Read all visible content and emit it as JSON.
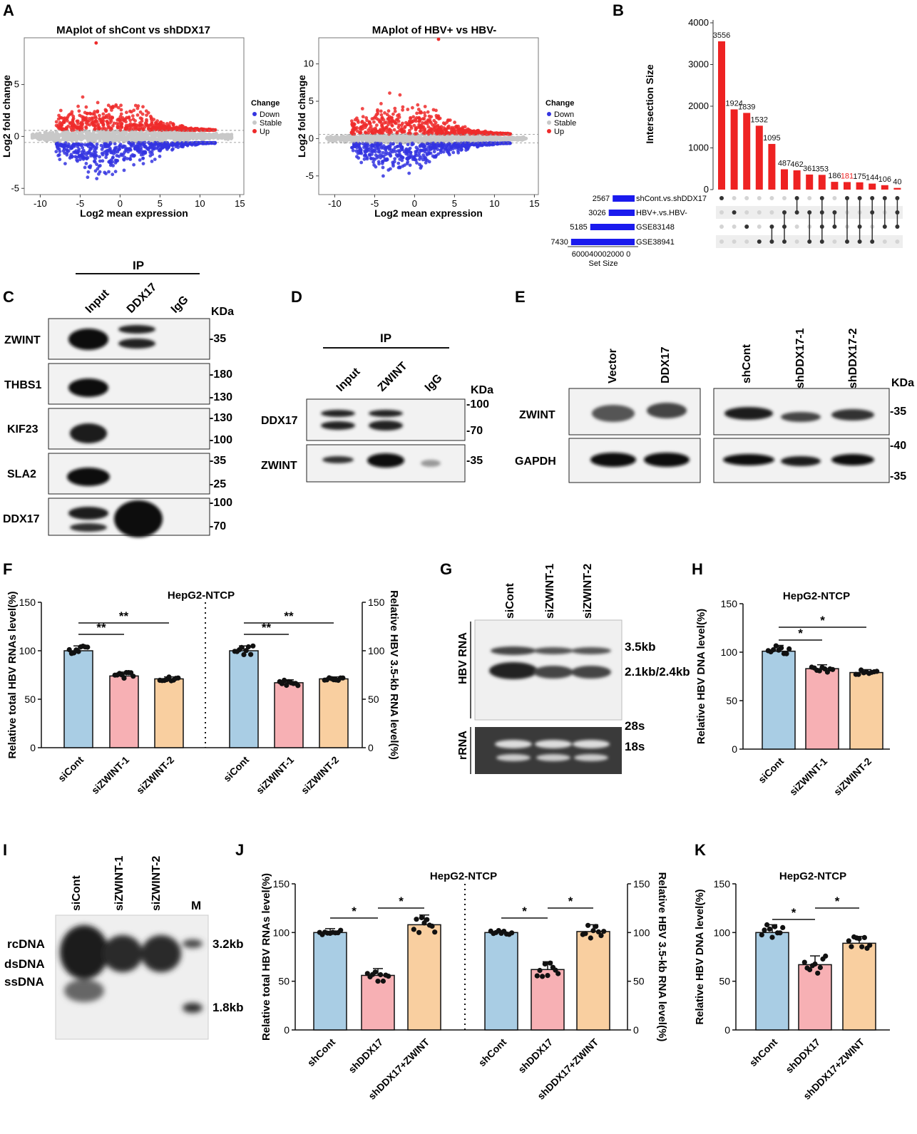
{
  "panel_letters": [
    "A",
    "B",
    "C",
    "D",
    "E",
    "F",
    "G",
    "H",
    "I",
    "J",
    "K"
  ],
  "colors": {
    "up": "#ee2a2a",
    "down": "#3434e0",
    "stable": "#c8c8c8",
    "bar_red": "#ee2222",
    "bar_blue": "#1a1aee",
    "ctrl": "#a9cde4",
    "kd": "#f7b0b4",
    "rescue": "#f9cfa0"
  },
  "chart_data": [
    {
      "id": "A1",
      "type": "scatter",
      "title": "MAplot of shCont vs shDDX17",
      "xlabel": "Log2 mean expression",
      "ylabel": "Log2 fold change",
      "xticks": [
        "-10",
        "-5",
        "0",
        "5",
        "10",
        "15"
      ],
      "yticks": [
        "-5",
        "0",
        "5"
      ],
      "xlim": [
        -12,
        15.5
      ],
      "ylim": [
        -5.6,
        9.5
      ],
      "legend": {
        "title": "Change",
        "items": [
          "Down",
          "Stable",
          "Up"
        ]
      },
      "thresholds": [
        -0.58,
        0.58
      ],
      "cloud": {
        "x_range": [
          -11,
          14
        ],
        "up_max": 5,
        "down_min": -5,
        "outlier_x": -3,
        "outlier_y": 9
      }
    },
    {
      "id": "A2",
      "type": "scatter",
      "title": "MAplot of HBV+ vs HBV-",
      "xlabel": "Log2 mean expression",
      "ylabel": "Log2 fold change",
      "xticks": [
        "-10",
        "-5",
        "0",
        "5",
        "10",
        "15"
      ],
      "yticks": [
        "-5",
        "0",
        "5",
        "10"
      ],
      "xlim": [
        -12,
        15.5
      ],
      "ylim": [
        -7.5,
        13.5
      ],
      "legend": {
        "title": "Change",
        "items": [
          "Down",
          "Stable",
          "Up"
        ]
      },
      "thresholds": [
        -0.58,
        0.58
      ],
      "cloud": {
        "x_range": [
          -11,
          14
        ],
        "up_max": 7,
        "down_min": -6.5,
        "outlier_x": 3,
        "outlier_y": 13.3
      }
    },
    {
      "id": "B",
      "type": "bar",
      "subtype": "upset",
      "ylabel": "Intersection Size",
      "yticks": [
        "0",
        "1000",
        "2000",
        "3000",
        "4000"
      ],
      "ylim": [
        0,
        4000
      ],
      "values": [
        3556,
        1924,
        1839,
        1532,
        1095,
        487,
        462,
        361,
        353,
        186,
        181,
        175,
        144,
        106,
        40
      ],
      "highlight_index": 10,
      "sets": [
        {
          "name": "shCont.vs.shDDX17",
          "size": 2567
        },
        {
          "name": "HBV+.vs.HBV-",
          "size": 3026
        },
        {
          "name": "GSE83148",
          "size": 5185
        },
        {
          "name": "GSE38941",
          "size": 7430
        }
      ],
      "set_size_label": "Set Size",
      "set_size_ticks": "600040002000  0",
      "matrix": [
        [
          0
        ],
        [
          1
        ],
        [
          2
        ],
        [
          3
        ],
        [
          2,
          3
        ],
        [
          1,
          2,
          3
        ],
        [
          0,
          1
        ],
        [
          1,
          3
        ],
        [
          0,
          1,
          2,
          3
        ],
        [
          1,
          2
        ],
        [
          0,
          3
        ],
        [
          0,
          2,
          3
        ],
        [
          0,
          1,
          3
        ],
        [
          0,
          2
        ],
        [
          0,
          1,
          2
        ]
      ]
    },
    {
      "id": "F",
      "type": "bar",
      "title": "HepG2-NTCP",
      "ylabel": "Relative total HBV RNAs level(%)",
      "y2label": "Relative HBV 3.5-kb RNA level(%)",
      "yticks": [
        "0",
        "50",
        "100",
        "150"
      ],
      "ylim": [
        0,
        150
      ],
      "categories": [
        "siCont",
        "siZWINT-1",
        "siZWINT-2",
        "siCont",
        "siZWINT-1",
        "siZWINT-2"
      ],
      "values": [
        100,
        74,
        71,
        100,
        67,
        71
      ],
      "errors": [
        5,
        4,
        2,
        5,
        3,
        2
      ],
      "sig": [
        {
          "from": 0,
          "to": 1,
          "label": "**"
        },
        {
          "from": 0,
          "to": 2,
          "label": "**"
        },
        {
          "from": 3,
          "to": 4,
          "label": "**"
        },
        {
          "from": 3,
          "to": 5,
          "label": "**"
        }
      ]
    },
    {
      "id": "H",
      "type": "bar",
      "title": "HepG2-NTCP",
      "ylabel": "Relative HBV DNA level(%)",
      "yticks": [
        "0",
        "50",
        "100",
        "150"
      ],
      "ylim": [
        0,
        150
      ],
      "categories": [
        "siCont",
        "siZWINT-1",
        "siZWINT-2"
      ],
      "values": [
        101,
        83,
        79
      ],
      "errors": [
        6,
        4,
        3
      ],
      "sig": [
        {
          "from": 0,
          "to": 1,
          "label": "*"
        },
        {
          "from": 0,
          "to": 2,
          "label": "*"
        }
      ]
    },
    {
      "id": "J",
      "type": "bar",
      "title": "HepG2-NTCP",
      "ylabel": "Relative total HBV RNAs level(%)",
      "y2label": "Relative HBV 3.5-kb RNA level(%)",
      "yticks": [
        "0",
        "50",
        "100",
        "150"
      ],
      "ylim": [
        0,
        150
      ],
      "categories": [
        "shCont",
        "shDDX17",
        "shDDX17+ZWINT",
        "shCont",
        "shDDX17",
        "shDDX17+ZWINT"
      ],
      "values": [
        100,
        56,
        108,
        100,
        62,
        101
      ],
      "errors": [
        4,
        7,
        10,
        2,
        8,
        7
      ],
      "sig": [
        {
          "from": 0,
          "to": 1,
          "label": "*"
        },
        {
          "from": 1,
          "to": 2,
          "label": "*"
        },
        {
          "from": 3,
          "to": 4,
          "label": "*"
        },
        {
          "from": 4,
          "to": 5,
          "label": "*"
        }
      ]
    },
    {
      "id": "K",
      "type": "bar",
      "title": "HepG2-NTCP",
      "ylabel": "Relative HBV DNA level(%)",
      "yticks": [
        "0",
        "50",
        "100",
        "150"
      ],
      "ylim": [
        0,
        150
      ],
      "categories": [
        "shCont",
        "shDDX17",
        "shDDX17+ZWINT"
      ],
      "values": [
        100,
        67,
        89
      ],
      "errors": [
        8,
        9,
        7
      ],
      "sig": [
        {
          "from": 0,
          "to": 1,
          "label": "*"
        },
        {
          "from": 1,
          "to": 2,
          "label": "*"
        }
      ]
    }
  ],
  "blots": {
    "C": {
      "header": "IP",
      "lanes": [
        "Input",
        "DDX17",
        "IgG"
      ],
      "unit": "KDa",
      "rows": [
        {
          "label": "ZWINT",
          "markers": [
            "-35"
          ]
        },
        {
          "label": "THBS1",
          "markers": [
            "-180",
            "-130"
          ]
        },
        {
          "label": "KIF23",
          "markers": [
            "-130",
            "-100"
          ]
        },
        {
          "label": "SLA2",
          "markers": [
            "-35",
            "-25"
          ]
        },
        {
          "label": "DDX17",
          "markers": [
            "-100",
            "-70"
          ]
        }
      ]
    },
    "D": {
      "header": "IP",
      "lanes": [
        "Input",
        "ZWINT",
        "IgG"
      ],
      "unit": "KDa",
      "rows": [
        {
          "label": "DDX17",
          "markers": [
            "-100",
            "-70"
          ]
        },
        {
          "label": "ZWINT",
          "markers": [
            "-35"
          ]
        }
      ]
    },
    "E": {
      "lanes": [
        "Vector",
        "DDX17",
        "shCont",
        "shDDX17-1",
        "shDDX17-2"
      ],
      "unit": "KDa",
      "rows": [
        {
          "label": "ZWINT",
          "markers": [
            "-35"
          ]
        },
        {
          "label": "GAPDH",
          "markers": [
            "-40",
            "-35"
          ]
        }
      ]
    },
    "G": {
      "lanes": [
        "siCont",
        "siZWINT-1",
        "siZWINT-2"
      ],
      "left_labels": [
        "HBV RNA",
        "rRNA"
      ],
      "right_labels": [
        "3.5kb",
        "2.1kb/2.4kb",
        "28s",
        "18s"
      ]
    },
    "I": {
      "lanes": [
        "siCont",
        "siZWINT-1",
        "siZWINT-2",
        "M"
      ],
      "left_labels": [
        "rcDNA",
        "dsDNA",
        "ssDNA"
      ],
      "right_labels": [
        "3.2kb",
        "1.8kb"
      ]
    }
  }
}
